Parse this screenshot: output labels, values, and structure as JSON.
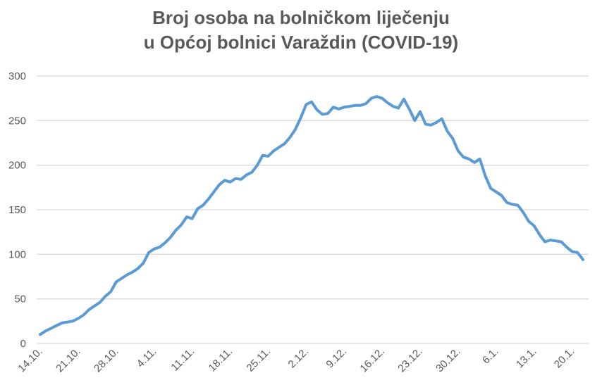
{
  "chart_data": {
    "type": "line",
    "title_lines": [
      "Broj osoba na bolničkom liječenju",
      "u Općoj bolnici Varaždin (COVID-19)"
    ],
    "xlabel": "",
    "ylabel": "",
    "ylim": [
      0,
      300
    ],
    "yticks": [
      0,
      50,
      100,
      150,
      200,
      250,
      300
    ],
    "grid": true,
    "legend": "none",
    "line_color": "#5b9bd5",
    "xtick_labels": [
      "14.10.",
      "21.10.",
      "28.10.",
      "4.11.",
      "11.11.",
      "18.11.",
      "25.11.",
      "2.12.",
      "9.12.",
      "16.12.",
      "23.12.",
      "30.12.",
      "6.1.",
      "13.1.",
      "20.1."
    ],
    "x": [
      "14.10.",
      "15.10.",
      "16.10.",
      "17.10.",
      "18.10.",
      "19.10.",
      "20.10.",
      "21.10.",
      "22.10.",
      "23.10.",
      "24.10.",
      "25.10.",
      "26.10.",
      "27.10.",
      "28.10.",
      "29.10.",
      "30.10.",
      "31.10.",
      "1.11.",
      "2.11.",
      "3.11.",
      "4.11.",
      "5.11.",
      "6.11.",
      "7.11.",
      "8.11.",
      "9.11.",
      "10.11.",
      "11.11.",
      "12.11.",
      "13.11.",
      "14.11.",
      "15.11.",
      "16.11.",
      "17.11.",
      "18.11.",
      "19.11.",
      "20.11.",
      "21.11.",
      "22.11.",
      "23.11.",
      "24.11.",
      "25.11.",
      "26.11.",
      "27.11.",
      "28.11.",
      "29.11.",
      "30.11.",
      "1.12.",
      "2.12.",
      "3.12.",
      "4.12.",
      "5.12.",
      "6.12.",
      "7.12.",
      "8.12.",
      "9.12.",
      "10.12.",
      "11.12.",
      "12.12.",
      "13.12.",
      "14.12.",
      "15.12.",
      "16.12.",
      "17.12.",
      "18.12.",
      "19.12.",
      "20.12.",
      "21.12.",
      "22.12.",
      "23.12.",
      "24.12.",
      "25.12.",
      "26.12.",
      "27.12.",
      "28.12.",
      "29.12.",
      "30.12.",
      "31.12.",
      "1.1.",
      "2.1.",
      "3.1.",
      "4.1.",
      "5.1.",
      "6.1.",
      "7.1.",
      "8.1.",
      "9.1.",
      "10.1.",
      "11.1.",
      "12.1.",
      "13.1.",
      "14.1.",
      "15.1.",
      "16.1.",
      "17.1.",
      "18.1.",
      "19.1.",
      "20.1.",
      "21.1.",
      "22.1."
    ],
    "values": [
      10,
      14,
      17,
      20,
      23,
      24,
      25,
      28,
      32,
      38,
      42,
      46,
      53,
      58,
      69,
      73,
      77,
      80,
      84,
      90,
      102,
      106,
      108,
      113,
      119,
      127,
      133,
      142,
      140,
      151,
      155,
      162,
      170,
      178,
      183,
      181,
      185,
      184,
      189,
      192,
      200,
      211,
      210,
      216,
      220,
      224,
      231,
      240,
      253,
      268,
      271,
      262,
      257,
      258,
      265,
      263,
      265,
      266,
      267,
      267,
      269,
      275,
      277,
      275,
      270,
      266,
      264,
      274,
      263,
      250,
      260,
      246,
      245,
      248,
      252,
      238,
      230,
      216,
      209,
      207,
      203,
      207,
      188,
      174,
      170,
      166,
      158,
      156,
      155,
      147,
      137,
      132,
      122,
      114,
      116,
      115,
      114,
      108,
      103,
      102,
      94
    ]
  }
}
